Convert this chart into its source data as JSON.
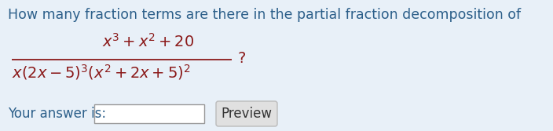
{
  "bg_color": "#e8f0f8",
  "text_color_dark": "#2c5f8a",
  "text_color_math": "#8B1A1A",
  "question_text": "How many fraction terms are there in the partial fraction decomposition of",
  "numerator": "$x^3 + x^2 + 20$",
  "denominator": "$x(2x-5)^3(x^2+2x+5)^2$",
  "question_mark": "?",
  "answer_label": "Your answer is:",
  "preview_label": "Preview",
  "fs_question": 12.5,
  "fs_math": 14,
  "fs_answer": 12,
  "fig_width": 7.04,
  "fig_height": 1.67,
  "dpi": 100
}
